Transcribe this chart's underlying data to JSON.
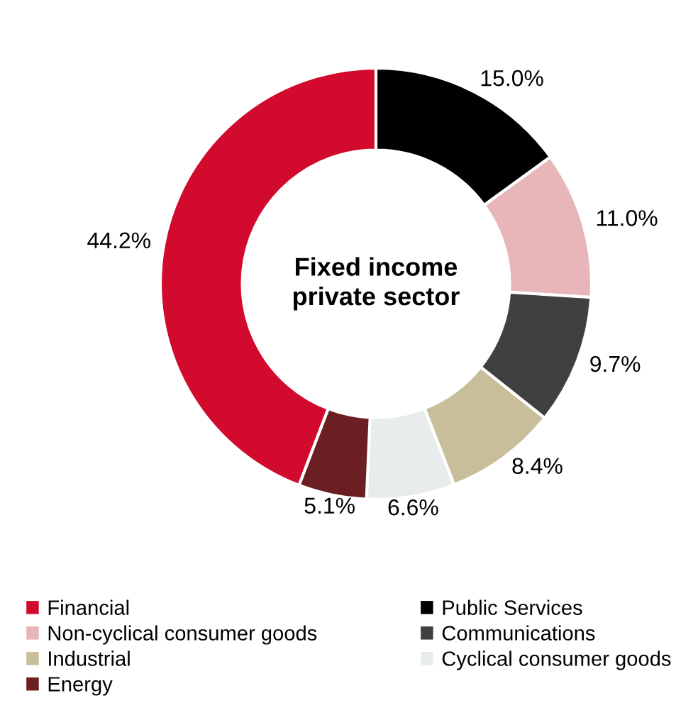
{
  "chart_data": {
    "type": "donut",
    "title": "Fixed income\nprivate sector",
    "categories": [
      "Financial",
      "Public Services",
      "Non-cyclical consumer goods",
      "Communications",
      "Industrial",
      "Cyclical consumer goods",
      "Energy"
    ],
    "values": [
      44.2,
      15.0,
      11.0,
      9.7,
      8.4,
      6.6,
      5.1
    ],
    "colors": [
      "#d20a2e",
      "#000000",
      "#e8b5b8",
      "#404040",
      "#c8bf9a",
      "#e8eced",
      "#6b1f23"
    ],
    "value_labels": [
      "44.2%",
      "15.0%",
      "11.0%",
      "9.7%",
      "8.4%",
      "6.6%",
      "5.1%"
    ],
    "legend": "bottom"
  }
}
